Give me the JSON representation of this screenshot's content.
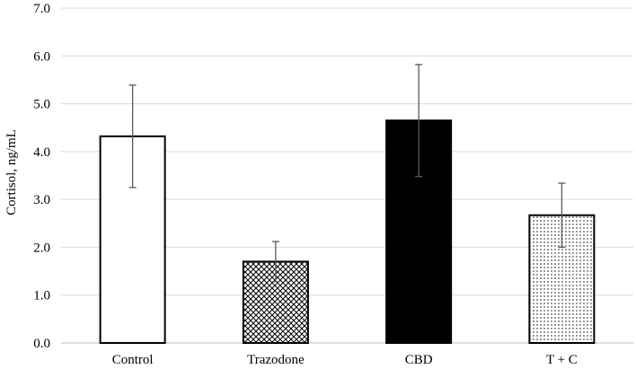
{
  "chart_data": {
    "type": "bar",
    "title": "",
    "xlabel": "",
    "ylabel": "Cortisol, ng/mL",
    "ylim": [
      0,
      7
    ],
    "ytick_step": 1,
    "yticks": [
      "0.0",
      "1.0",
      "2.0",
      "3.0",
      "4.0",
      "5.0",
      "6.0",
      "7.0"
    ],
    "grid": true,
    "categories": [
      "Control",
      "Trazodone",
      "CBD",
      "T + C"
    ],
    "values": [
      4.32,
      1.7,
      4.65,
      2.67
    ],
    "errors": [
      1.07,
      0.42,
      1.17,
      0.67
    ],
    "fills": [
      "white",
      "crosshatch",
      "solid",
      "dots"
    ],
    "colors": {
      "bar_edge": "#000000",
      "solid": "#000000",
      "grid": "#d9d9d9",
      "error_bar": "#595959"
    }
  }
}
